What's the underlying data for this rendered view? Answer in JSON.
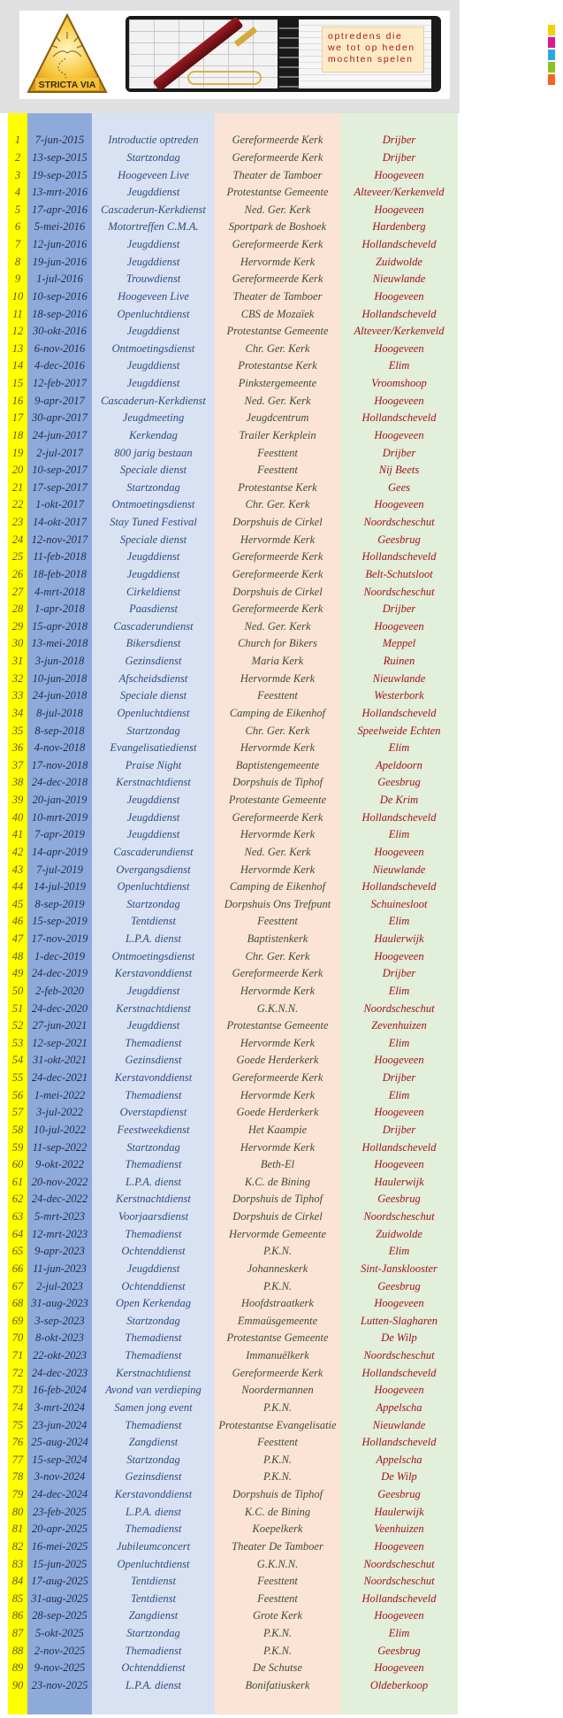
{
  "header": {
    "logo_text": "STRICTA VIA",
    "note_lines": [
      "optredens die",
      "we tot op heden",
      "mochten spelen"
    ],
    "tab_colors": [
      "#f5d000",
      "#e0168c",
      "#27a9e1",
      "#8cc21f",
      "#f26522"
    ]
  },
  "colors": {
    "number_column": "#ffff00",
    "date_column": "#8eaadb",
    "event_column": "#d9e2f3",
    "location_column": "#fbe4d5",
    "town_column": "#e2efda",
    "town_text": "#a3121c"
  },
  "rows": [
    {
      "nr": "1",
      "date": "7-jun-2015",
      "event": "Introductie optreden",
      "location": "Gereformeerde Kerk",
      "town": "Drijber"
    },
    {
      "nr": "2",
      "date": "13-sep-2015",
      "event": "Startzondag",
      "location": "Gereformeerde Kerk",
      "town": "Drijber"
    },
    {
      "nr": "3",
      "date": "19-sep-2015",
      "event": "Hoogeveen Live",
      "location": "Theater de Tamboer",
      "town": "Hoogeveen"
    },
    {
      "nr": "4",
      "date": "13-mrt-2016",
      "event": "Jeugddienst",
      "location": "Protestantse Gemeente",
      "town": "Alteveer/Kerkenveld"
    },
    {
      "nr": "5",
      "date": "17-apr-2016",
      "event": "Cascaderun-Kerkdienst",
      "location": "Ned. Ger. Kerk",
      "town": "Hoogeveen"
    },
    {
      "nr": "6",
      "date": "5-mei-2016",
      "event": "Motortreffen C.M.A.",
      "location": "Sportpark de Boshoek",
      "town": "Hardenberg"
    },
    {
      "nr": "7",
      "date": "12-jun-2016",
      "event": "Jeugddienst",
      "location": "Gereformeerde Kerk",
      "town": "Hollandscheveld"
    },
    {
      "nr": "8",
      "date": "19-jun-2016",
      "event": "Jeugddienst",
      "location": "Hervormde Kerk",
      "town": "Zuidwolde"
    },
    {
      "nr": "9",
      "date": "1-jul-2016",
      "event": "Trouwdienst",
      "location": "Gereformeerde Kerk",
      "town": "Nieuwlande"
    },
    {
      "nr": "10",
      "date": "10-sep-2016",
      "event": "Hoogeveen Live",
      "location": "Theater de Tamboer",
      "town": "Hoogeveen"
    },
    {
      "nr": "11",
      "date": "18-sep-2016",
      "event": "Openluchtdienst",
      "location": "CBS de Mozaïek",
      "town": "Hollandscheveld"
    },
    {
      "nr": "12",
      "date": "30-okt-2016",
      "event": "Jeugddienst",
      "location": "Protestantse Gemeente",
      "town": "Alteveer/Kerkenveld"
    },
    {
      "nr": "13",
      "date": "6-nov-2016",
      "event": "Ontmoetingsdienst",
      "location": "Chr. Ger. Kerk",
      "town": "Hoogeveen"
    },
    {
      "nr": "14",
      "date": "4-dec-2016",
      "event": "Jeugddienst",
      "location": "Protestantse Kerk",
      "town": "Elim"
    },
    {
      "nr": "15",
      "date": "12-feb-2017",
      "event": "Jeugddienst",
      "location": "Pinkstergemeente",
      "town": "Vroomshoop"
    },
    {
      "nr": "16",
      "date": "9-apr-2017",
      "event": "Cascaderun-Kerkdienst",
      "location": "Ned. Ger. Kerk",
      "town": "Hoogeveen"
    },
    {
      "nr": "17",
      "date": "30-apr-2017",
      "event": "Jeugdmeeting",
      "location": "Jeugdcentrum",
      "town": "Hollandscheveld"
    },
    {
      "nr": "18",
      "date": "24-jun-2017",
      "event": "Kerkendag",
      "location": "Trailer Kerkplein",
      "town": "Hoogeveen"
    },
    {
      "nr": "19",
      "date": "2-jul-2017",
      "event": "800 jarig bestaan",
      "location": "Feesttent",
      "town": "Drijber"
    },
    {
      "nr": "20",
      "date": "10-sep-2017",
      "event": "Speciale dienst",
      "location": "Feesttent",
      "town": "Nij Beets"
    },
    {
      "nr": "21",
      "date": "17-sep-2017",
      "event": "Startzondag",
      "location": "Protestantse Kerk",
      "town": "Gees"
    },
    {
      "nr": "22",
      "date": "1-okt-2017",
      "event": "Ontmoetingsdienst",
      "location": "Chr. Ger. Kerk",
      "town": "Hoogeveen"
    },
    {
      "nr": "23",
      "date": "14-okt-2017",
      "event": "Stay Tuned Festival",
      "location": "Dorpshuis de Cirkel",
      "town": "Noordscheschut"
    },
    {
      "nr": "24",
      "date": "12-nov-2017",
      "event": "Speciale dienst",
      "location": "Hervormde Kerk",
      "town": "Geesbrug"
    },
    {
      "nr": "25",
      "date": "11-feb-2018",
      "event": "Jeugddienst",
      "location": "Gereformeerde Kerk",
      "town": "Hollandscheveld"
    },
    {
      "nr": "26",
      "date": "18-feb-2018",
      "event": "Jeugddienst",
      "location": "Gereformeerde Kerk",
      "town": "Belt-Schutsloot"
    },
    {
      "nr": "27",
      "date": "4-mrt-2018",
      "event": "Cirkeldienst",
      "location": "Dorpshuis de Cirkel",
      "town": "Noordscheschut"
    },
    {
      "nr": "28",
      "date": "1-apr-2018",
      "event": "Paasdienst",
      "location": "Gereformeerde Kerk",
      "town": "Drijber"
    },
    {
      "nr": "29",
      "date": "15-apr-2018",
      "event": "Cascaderundienst",
      "location": "Ned. Ger. Kerk",
      "town": "Hoogeveen"
    },
    {
      "nr": "30",
      "date": "13-mei-2018",
      "event": "Bikersdienst",
      "location": "Church for Bikers",
      "town": "Meppel"
    },
    {
      "nr": "31",
      "date": "3-jun-2018",
      "event": "Gezinsdienst",
      "location": "Maria Kerk",
      "town": "Ruinen"
    },
    {
      "nr": "32",
      "date": "10-jun-2018",
      "event": "Afscheidsdienst",
      "location": "Hervormde Kerk",
      "town": "Nieuwlande"
    },
    {
      "nr": "33",
      "date": "24-jun-2018",
      "event": "Speciale dienst",
      "location": "Feesttent",
      "town": "Westerbork"
    },
    {
      "nr": "34",
      "date": "8-jul-2018",
      "event": "Openluchtdienst",
      "location": "Camping de Eikenhof",
      "town": "Hollandscheveld"
    },
    {
      "nr": "35",
      "date": "8-sep-2018",
      "event": "Startzondag",
      "location": "Chr. Ger. Kerk",
      "town": "Speelweide Echten"
    },
    {
      "nr": "36",
      "date": "4-nov-2018",
      "event": "Evangelisatiedienst",
      "location": "Hervormde Kerk",
      "town": "Elim"
    },
    {
      "nr": "37",
      "date": "17-nov-2018",
      "event": "Praise Night",
      "location": "Baptistengemeente",
      "town": "Apeldoorn"
    },
    {
      "nr": "38",
      "date": "24-dec-2018",
      "event": "Kerstnachtdienst",
      "location": "Dorpshuis de Tiphof",
      "town": "Geesbrug"
    },
    {
      "nr": "39",
      "date": "20-jan-2019",
      "event": "Jeugddienst",
      "location": "Protestante Gemeente",
      "town": "De Krim"
    },
    {
      "nr": "40",
      "date": "10-mrt-2019",
      "event": "Jeugddienst",
      "location": "Gereformeerde Kerk",
      "town": "Hollandscheveld"
    },
    {
      "nr": "41",
      "date": "7-apr-2019",
      "event": "Jeugddienst",
      "location": "Hervormde Kerk",
      "town": "Elim"
    },
    {
      "nr": "42",
      "date": "14-apr-2019",
      "event": "Cascaderundienst",
      "location": "Ned. Ger. Kerk",
      "town": "Hoogeveen"
    },
    {
      "nr": "43",
      "date": "7-jul-2019",
      "event": "Overgangsdienst",
      "location": "Hervormde Kerk",
      "town": "Nieuwlande"
    },
    {
      "nr": "44",
      "date": "14-jul-2019",
      "event": "Openluchtdienst",
      "location": "Camping de Eikenhof",
      "town": "Hollandscheveld"
    },
    {
      "nr": "45",
      "date": "8-sep-2019",
      "event": "Startzondag",
      "location": "Dorpshuis Ons Trefpunt",
      "town": "Schuinesloot"
    },
    {
      "nr": "46",
      "date": "15-sep-2019",
      "event": "Tentdienst",
      "location": "Feesttent",
      "town": "Elim"
    },
    {
      "nr": "47",
      "date": "17-nov-2019",
      "event": "L.P.A. dienst",
      "location": "Baptistenkerk",
      "town": "Haulerwijk"
    },
    {
      "nr": "48",
      "date": "1-dec-2019",
      "event": "Ontmoetingsdienst",
      "location": "Chr. Ger. Kerk",
      "town": "Hoogeveen"
    },
    {
      "nr": "49",
      "date": "24-dec-2019",
      "event": "Kerstavonddienst",
      "location": "Gereformeerde Kerk",
      "town": "Drijber"
    },
    {
      "nr": "50",
      "date": "2-feb-2020",
      "event": "Jeugddienst",
      "location": "Hervormde Kerk",
      "town": "Elim"
    },
    {
      "nr": "51",
      "date": "24-dec-2020",
      "event": "Kerstnachtdienst",
      "location": "G.K.N.N.",
      "town": "Noordscheschut"
    },
    {
      "nr": "52",
      "date": "27-jun-2021",
      "event": "Jeugddienst",
      "location": "Protestantse Gemeente",
      "town": "Zevenhuizen"
    },
    {
      "nr": "53",
      "date": "12-sep-2021",
      "event": "Themadienst",
      "location": "Hervormde Kerk",
      "town": "Elim"
    },
    {
      "nr": "54",
      "date": "31-okt-2021",
      "event": "Gezinsdienst",
      "location": "Goede Herderkerk",
      "town": "Hoogeveen"
    },
    {
      "nr": "55",
      "date": "24-dec-2021",
      "event": "Kerstavonddienst",
      "location": "Gereformeerde Kerk",
      "town": "Drijber"
    },
    {
      "nr": "56",
      "date": "1-mei-2022",
      "event": "Themadienst",
      "location": "Hervormde Kerk",
      "town": "Elim"
    },
    {
      "nr": "57",
      "date": "3-jul-2022",
      "event": "Overstapdienst",
      "location": "Goede Herderkerk",
      "town": "Hoogeveen"
    },
    {
      "nr": "58",
      "date": "10-jul-2022",
      "event": "Feestweekdienst",
      "location": "Het Kaampie",
      "town": "Drijber"
    },
    {
      "nr": "59",
      "date": "11-sep-2022",
      "event": "Startzondag",
      "location": "Hervormde Kerk",
      "town": "Hollandscheveld"
    },
    {
      "nr": "60",
      "date": "9-okt-2022",
      "event": "Themadienst",
      "location": "Beth-El",
      "town": "Hoogeveen"
    },
    {
      "nr": "61",
      "date": "20-nov-2022",
      "event": "L.P.A. dienst",
      "location": "K.C. de Bining",
      "town": "Haulerwijk"
    },
    {
      "nr": "62",
      "date": "24-dec-2022",
      "event": "Kerstnachtdienst",
      "location": "Dorpshuis de Tiphof",
      "town": "Geesbrug"
    },
    {
      "nr": "63",
      "date": "5-mrt-2023",
      "event": "Voorjaarsdienst",
      "location": "Dorpshuis de Cirkel",
      "town": "Noordscheschut"
    },
    {
      "nr": "64",
      "date": "12-mrt-2023",
      "event": "Themadienst",
      "location": "Hervormde Gemeente",
      "town": "Zuidwolde"
    },
    {
      "nr": "65",
      "date": "9-apr-2023",
      "event": "Ochtenddienst",
      "location": "P.K.N.",
      "town": "Elim"
    },
    {
      "nr": "66",
      "date": "11-jun-2023",
      "event": "Jeugddienst",
      "location": "Johanneskerk",
      "town": "Sint-Jansklooster"
    },
    {
      "nr": "67",
      "date": "2-jul-2023",
      "event": "Ochtenddienst",
      "location": "P.K.N.",
      "town": "Geesbrug"
    },
    {
      "nr": "68",
      "date": "31-aug-2023",
      "event": "Open Kerkendag",
      "location": "Hoofdstraatkerk",
      "town": "Hoogeveen"
    },
    {
      "nr": "69",
      "date": "3-sep-2023",
      "event": "Startzondag",
      "location": "Emmaüsgemeente",
      "town": "Lutten-Slagharen"
    },
    {
      "nr": "70",
      "date": "8-okt-2023",
      "event": "Themadienst",
      "location": "Protestantse Gemeente",
      "town": "De Wilp"
    },
    {
      "nr": "71",
      "date": "22-okt-2023",
      "event": "Themadienst",
      "location": "Immanuëlkerk",
      "town": "Noordscheschut"
    },
    {
      "nr": "72",
      "date": "24-dec-2023",
      "event": "Kerstnachtdienst",
      "location": "Gereformeerde Kerk",
      "town": "Hollandscheveld"
    },
    {
      "nr": "73",
      "date": "16-feb-2024",
      "event": "Avond van verdieping",
      "location": "Noordermannen",
      "town": "Hoogeveen"
    },
    {
      "nr": "74",
      "date": "3-mrt-2024",
      "event": "Samen jong event",
      "location": "P.K.N.",
      "town": "Appelscha"
    },
    {
      "nr": "75",
      "date": "23-jun-2024",
      "event": "Themadienst",
      "location": "Protestantse Evangelisatie",
      "town": "Nieuwlande"
    },
    {
      "nr": "76",
      "date": "25-aug-2024",
      "event": "Zangdienst",
      "location": "Feesttent",
      "town": "Hollandscheveld"
    },
    {
      "nr": "77",
      "date": "15-sep-2024",
      "event": "Startzondag",
      "location": "P.K.N.",
      "town": "Appelscha"
    },
    {
      "nr": "78",
      "date": "3-nov-2024",
      "event": "Gezinsdienst",
      "location": "P.K.N.",
      "town": "De Wilp"
    },
    {
      "nr": "79",
      "date": "24-dec-2024",
      "event": "Kerstavonddienst",
      "location": "Dorpshuis de Tiphof",
      "town": "Geesbrug"
    },
    {
      "nr": "80",
      "date": "23-feb-2025",
      "event": "L.P.A. dienst",
      "location": "K.C. de Bining",
      "town": "Haulerwijk"
    },
    {
      "nr": "81",
      "date": "20-apr-2025",
      "event": "Themadienst",
      "location": "Koepelkerk",
      "town": "Veenhuizen"
    },
    {
      "nr": "82",
      "date": "16-mei-2025",
      "event": "Jubileumconcert",
      "location": "Theater De Tamboer",
      "town": "Hoogeveen"
    },
    {
      "nr": "83",
      "date": "15-jun-2025",
      "event": "Openluchtdienst",
      "location": "G.K.N.N.",
      "town": "Noordscheschut"
    },
    {
      "nr": "84",
      "date": "17-aug-2025",
      "event": "Tentdienst",
      "location": "Feesttent",
      "town": "Noordscheschut"
    },
    {
      "nr": "85",
      "date": "31-aug-2025",
      "event": "Tentdienst",
      "location": "Feesttent",
      "town": "Hollandscheveld"
    },
    {
      "nr": "86",
      "date": "28-sep-2025",
      "event": "Zangdienst",
      "location": "Grote Kerk",
      "town": "Hoogeveen"
    },
    {
      "nr": "87",
      "date": "5-okt-2025",
      "event": "Startzondag",
      "location": "P.K.N.",
      "town": "Elim"
    },
    {
      "nr": "88",
      "date": "2-nov-2025",
      "event": "Themadienst",
      "location": "P.K.N.",
      "town": "Geesbrug"
    },
    {
      "nr": "89",
      "date": "9-nov-2025",
      "event": "Ochtenddienst",
      "location": "De Schutse",
      "town": "Hoogeveen"
    },
    {
      "nr": "90",
      "date": "23-nov-2025",
      "event": "L.P.A. dienst",
      "location": "Bonifatiuskerk",
      "town": "Oldeberkoop"
    }
  ]
}
